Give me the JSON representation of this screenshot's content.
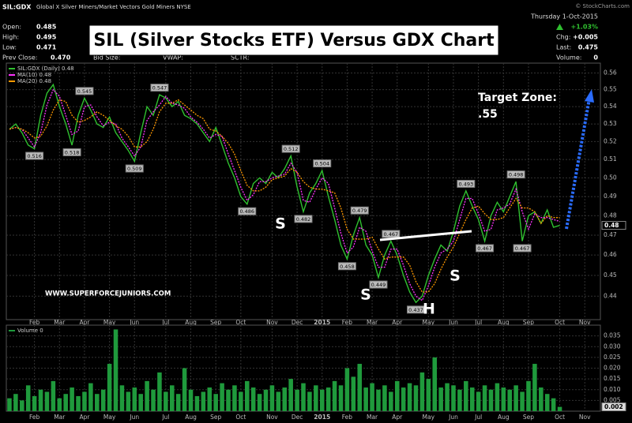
{
  "header": {
    "symbol": "SIL:GDX",
    "description": "Global X Silver Miners/Market Vectors Gold Miners NYSE",
    "copyright": "© StockCharts.com",
    "date": "Thursday 1-Oct-2015",
    "fields": [
      {
        "label": "Open:",
        "value": "0.485"
      },
      {
        "label": "High:",
        "value": "0.495"
      },
      {
        "label": "Low:",
        "value": "0.471"
      },
      {
        "label": "Prev Close:",
        "value": "0.470"
      }
    ],
    "empty_fields": [
      "Bid Size:",
      "VWAP:",
      "SCTR:"
    ],
    "change_pct": "+1.03%",
    "right_fields": [
      {
        "label": "Chg:",
        "value": "+0.005"
      },
      {
        "label": "Last:",
        "value": "0.475"
      },
      {
        "label": "Volume:",
        "value": "0"
      }
    ]
  },
  "chart_data": [
    {
      "type": "line",
      "title": "SIL (Silver Stocks ETF) Versus GDX Chart",
      "log_scale": true,
      "grid": true,
      "categories": [
        null,
        null,
        null,
        null,
        "Feb",
        null,
        null,
        null,
        "Mar",
        null,
        null,
        null,
        "Apr",
        null,
        null,
        null,
        "May",
        null,
        null,
        null,
        "Jun",
        null,
        null,
        null,
        null,
        "Jul",
        null,
        null,
        null,
        "Aug",
        null,
        null,
        null,
        "Sep",
        null,
        null,
        null,
        "Oct",
        null,
        null,
        null,
        null,
        "Nov",
        null,
        null,
        null,
        "Dec",
        null,
        null,
        null,
        "2015",
        null,
        null,
        null,
        "Feb",
        null,
        null,
        null,
        "Mar",
        null,
        null,
        null,
        "Apr",
        null,
        null,
        null,
        null,
        "May",
        null,
        null,
        null,
        "Jun",
        null,
        null,
        null,
        "Jul",
        null,
        null,
        null,
        "Aug",
        null,
        null,
        null,
        "Sep",
        null,
        null,
        null,
        null,
        "Oct",
        null,
        null,
        null,
        "Nov",
        null,
        null
      ],
      "series": [
        {
          "name": "SIL:GDX (Daily)",
          "last_label": "0.48",
          "color": "#2fc02f",
          "dash": false,
          "values": [
            0.527,
            0.53,
            0.525,
            0.518,
            0.516,
            0.535,
            0.548,
            0.553,
            0.54,
            0.53,
            0.518,
            0.535,
            0.545,
            0.538,
            0.53,
            0.528,
            0.534,
            0.525,
            0.52,
            0.515,
            0.509,
            0.525,
            0.54,
            0.535,
            0.547,
            0.545,
            0.54,
            0.543,
            0.535,
            0.533,
            0.53,
            0.525,
            0.52,
            0.528,
            0.518,
            0.508,
            0.5,
            0.49,
            0.486,
            0.497,
            0.5,
            0.497,
            0.503,
            0.5,
            0.505,
            0.512,
            0.495,
            0.482,
            0.492,
            0.497,
            0.504,
            0.49,
            0.478,
            0.465,
            0.458,
            0.47,
            0.479,
            0.465,
            0.46,
            0.449,
            0.46,
            0.467,
            0.46,
            0.45,
            0.442,
            0.437,
            0.44,
            0.45,
            0.458,
            0.465,
            0.462,
            0.472,
            0.485,
            0.493,
            0.485,
            0.478,
            0.467,
            0.48,
            0.487,
            0.482,
            0.49,
            0.498,
            0.467,
            0.48,
            0.482,
            0.476,
            0.483,
            0.474,
            0.475,
            null,
            null,
            null,
            null,
            null,
            null
          ],
          "value_labels": [
            null,
            null,
            null,
            null,
            "0.516",
            null,
            null,
            null,
            null,
            null,
            "0.518",
            null,
            "0.545",
            null,
            null,
            null,
            null,
            null,
            null,
            null,
            "0.509",
            null,
            null,
            null,
            "0.547",
            null,
            null,
            null,
            null,
            null,
            null,
            null,
            null,
            null,
            null,
            null,
            null,
            null,
            "0.486",
            null,
            null,
            null,
            null,
            null,
            null,
            "0.512",
            null,
            "0.482",
            null,
            null,
            "0.504",
            null,
            null,
            null,
            "0.458",
            null,
            "0.479",
            null,
            null,
            "0.449",
            null,
            "0.467",
            null,
            null,
            null,
            "0.437",
            null,
            null,
            null,
            null,
            null,
            null,
            null,
            "0.493",
            null,
            null,
            "0.467",
            null,
            null,
            null,
            null,
            "0.498",
            "0.467",
            null,
            null,
            null,
            null,
            null,
            null,
            null,
            null,
            null,
            null,
            null,
            null
          ]
        },
        {
          "name": "MA(10)",
          "last_label": "0.48",
          "color": "#ff33ff",
          "dash": true,
          "values": [
            0.527,
            0.528,
            0.527,
            0.522,
            0.517,
            0.525,
            0.541,
            0.55,
            0.546,
            0.535,
            0.524,
            0.526,
            0.54,
            0.541,
            0.534,
            0.529,
            0.531,
            0.53,
            0.522,
            0.517,
            0.512,
            0.517,
            0.532,
            0.537,
            0.541,
            0.546,
            0.542,
            0.541,
            0.539,
            0.534,
            0.531,
            0.527,
            0.522,
            0.524,
            0.523,
            0.513,
            0.504,
            0.495,
            0.488,
            0.491,
            0.498,
            0.498,
            0.5,
            0.501,
            0.502,
            0.508,
            0.503,
            0.488,
            0.487,
            0.494,
            0.5,
            0.497,
            0.484,
            0.471,
            0.461,
            0.464,
            0.474,
            0.472,
            0.462,
            0.454,
            0.454,
            0.463,
            0.463,
            0.455,
            0.446,
            0.44,
            0.438,
            0.445,
            0.454,
            0.461,
            0.463,
            0.467,
            0.478,
            0.489,
            0.489,
            0.481,
            0.472,
            0.473,
            0.483,
            0.484,
            0.486,
            0.494,
            0.482,
            0.473,
            0.481,
            0.479,
            0.479,
            0.478,
            0.477,
            null,
            null,
            null,
            null,
            null,
            null
          ]
        },
        {
          "name": "MA(20)",
          "last_label": "0.48",
          "color": "#ff9900",
          "dash": true,
          "values": [
            0.527,
            0.528,
            0.527,
            0.525,
            0.522,
            0.523,
            0.529,
            0.538,
            0.544,
            0.543,
            0.535,
            0.531,
            0.532,
            0.534,
            0.537,
            0.535,
            0.532,
            0.529,
            0.527,
            0.523,
            0.517,
            0.517,
            0.52,
            0.527,
            0.537,
            0.542,
            0.542,
            0.544,
            0.541,
            0.538,
            0.535,
            0.533,
            0.527,
            0.526,
            0.523,
            0.519,
            0.513,
            0.504,
            0.496,
            0.493,
            0.493,
            0.495,
            0.499,
            0.5,
            0.501,
            0.505,
            0.503,
            0.498,
            0.495,
            0.494,
            0.494,
            0.493,
            0.492,
            0.484,
            0.473,
            0.468,
            0.468,
            0.468,
            0.469,
            0.463,
            0.458,
            0.459,
            0.459,
            0.459,
            0.455,
            0.447,
            0.442,
            0.442,
            0.446,
            0.453,
            0.459,
            0.464,
            0.471,
            0.478,
            0.484,
            0.485,
            0.481,
            0.478,
            0.478,
            0.479,
            0.484,
            0.489,
            0.484,
            0.484,
            0.482,
            0.476,
            0.48,
            0.479,
            0.479,
            null,
            null,
            null,
            null,
            null,
            null
          ]
        }
      ],
      "current_label": "0.48",
      "ylim": [
        0.429,
        0.566
      ],
      "yticks": [
        0.44,
        0.45,
        0.46,
        0.47,
        0.48,
        0.49,
        {
          "value": 0.5,
          "label": "0.50"
        },
        0.51,
        0.52,
        0.53,
        0.54,
        0.55,
        0.56
      ],
      "annotations": [
        "S",
        "S",
        "H",
        "S",
        "Target Zone:",
        ".55",
        "WWW.SUPERFORCEJUNIORS.COM"
      ]
    },
    {
      "type": "bar",
      "grid": true,
      "categories": [
        null,
        null,
        null,
        null,
        "Feb",
        null,
        null,
        null,
        "Mar",
        null,
        null,
        null,
        "Apr",
        null,
        null,
        null,
        "May",
        null,
        null,
        null,
        "Jun",
        null,
        null,
        null,
        null,
        "Jul",
        null,
        null,
        null,
        "Aug",
        null,
        null,
        null,
        "Sep",
        null,
        null,
        null,
        "Oct",
        null,
        null,
        null,
        null,
        "Nov",
        null,
        null,
        null,
        "Dec",
        null,
        null,
        null,
        "2015",
        null,
        null,
        null,
        "Feb",
        null,
        null,
        null,
        "Mar",
        null,
        null,
        null,
        "Apr",
        null,
        null,
        null,
        null,
        "May",
        null,
        null,
        null,
        "Jun",
        null,
        null,
        null,
        "Jul",
        null,
        null,
        null,
        "Aug",
        null,
        null,
        null,
        "Sep",
        null,
        null,
        null,
        null,
        "Oct",
        null,
        null,
        null,
        "Nov",
        null,
        null
      ],
      "series": [
        {
          "name": "Volume",
          "last_label": "0",
          "color": "#1f9a3c",
          "values": [
            0.006,
            0.008,
            0.005,
            0.012,
            0.007,
            0.01,
            0.009,
            0.014,
            0.006,
            0.008,
            0.011,
            0.007,
            0.009,
            0.013,
            0.008,
            0.01,
            0.022,
            0.038,
            0.012,
            0.009,
            0.011,
            0.008,
            0.014,
            0.01,
            0.018,
            0.009,
            0.012,
            0.008,
            0.02,
            0.01,
            0.007,
            0.009,
            0.011,
            0.008,
            0.013,
            0.01,
            0.012,
            0.009,
            0.014,
            0.011,
            0.008,
            0.01,
            0.012,
            0.009,
            0.011,
            0.015,
            0.01,
            0.013,
            0.009,
            0.012,
            0.01,
            0.011,
            0.014,
            0.012,
            0.02,
            0.016,
            0.022,
            0.011,
            0.013,
            0.01,
            0.012,
            0.009,
            0.014,
            0.011,
            0.013,
            0.012,
            0.018,
            0.015,
            0.025,
            0.011,
            0.013,
            0.012,
            0.01,
            0.014,
            0.011,
            0.009,
            0.012,
            0.01,
            0.013,
            0.011,
            0.01,
            0.012,
            0.009,
            0.014,
            0.022,
            0.011,
            0.008,
            0.006,
            0.002,
            null,
            null,
            null,
            null,
            null,
            null
          ]
        }
      ],
      "current_label": "0.002",
      "ylim": [
        0,
        0.04
      ],
      "yticks": [
        0.005,
        {
          "value": 0.01,
          "label": "0.010"
        },
        0.015,
        {
          "value": 0.02,
          "label": "0.020"
        },
        0.025,
        {
          "value": 0.03,
          "label": "0.030"
        },
        0.035
      ]
    }
  ]
}
